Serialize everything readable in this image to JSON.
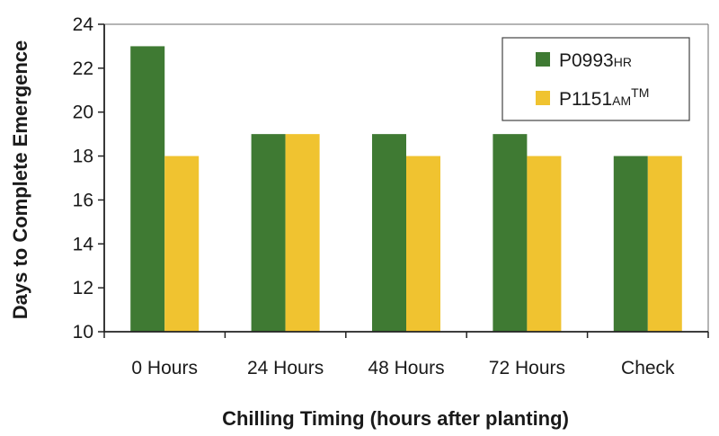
{
  "chart_data": {
    "type": "bar",
    "categories": [
      "0 Hours",
      "24 Hours",
      "48 Hours",
      "72 Hours",
      "Check"
    ],
    "series": [
      {
        "name": "P0993",
        "name_suffix": "HR",
        "name_superscript": "",
        "color": "#3f7a33",
        "values": [
          23,
          19,
          19,
          19,
          18
        ]
      },
      {
        "name": "P1151",
        "name_suffix": "AM",
        "name_superscript": "TM",
        "color": "#f0c330",
        "values": [
          18,
          19,
          18,
          18,
          18
        ]
      }
    ],
    "xlabel": "Chilling Timing (hours after planting)",
    "ylabel": "Days to Complete Emergence",
    "ylim": [
      10,
      24
    ],
    "yticks": [
      10,
      12,
      14,
      16,
      18,
      20,
      22,
      24
    ],
    "legend": "top-right",
    "grid": false
  }
}
